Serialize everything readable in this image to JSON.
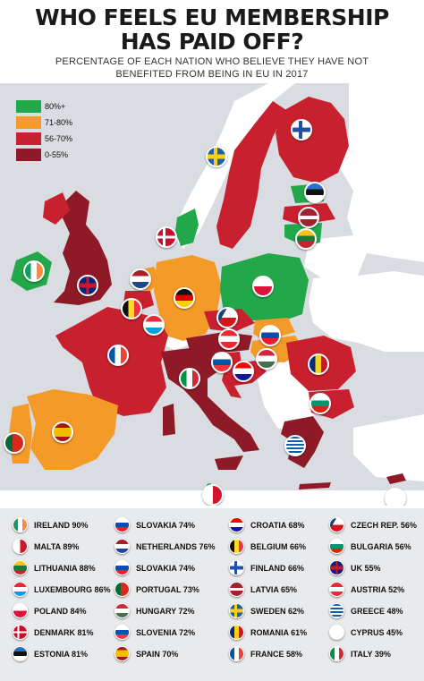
{
  "header": {
    "title_line1": "WHO FEELS EU MEMBERSHIP",
    "title_line2": "HAS PAID OFF?",
    "subtitle_line1": "PERCENTAGE OF EACH NATION WHO BELIEVE THEY HAVE NOT",
    "subtitle_line2": "BENEFITED FROM BEING IN EU IN 2017"
  },
  "colors": {
    "band_80_plus": "#22a84a",
    "band_71_80": "#f49a28",
    "band_56_70": "#c8202f",
    "band_0_55": "#8e1a27",
    "sea": "#d9dce0",
    "non_eu_land": "#ffffff"
  },
  "legend": [
    {
      "label": "80%+",
      "color": "#22a84a"
    },
    {
      "label": "71-80%",
      "color": "#f49a28"
    },
    {
      "label": "56-70%",
      "color": "#c8202f"
    },
    {
      "label": "0-55%",
      "color": "#8e1a27"
    }
  ],
  "countries": {
    "column1": [
      {
        "label": "IRELAND 90%",
        "flag": "ireland-flag-icon"
      },
      {
        "label": "MALTA 89%",
        "flag": "malta-flag-icon"
      },
      {
        "label": "LITHUANIA 88%",
        "flag": "lithuania-flag-icon"
      },
      {
        "label": "LUXEMBOURG 86%",
        "flag": "luxembourg-flag-icon"
      },
      {
        "label": "POLAND 84%",
        "flag": "poland-flag-icon"
      },
      {
        "label": "DENMARK 81%",
        "flag": "denmark-flag-icon"
      },
      {
        "label": "ESTONIA 81%",
        "flag": "estonia-flag-icon"
      }
    ],
    "column2": [
      {
        "label": "SLOVAKIA 74%",
        "flag": "slovakia-flag-icon"
      },
      {
        "label": "NETHERLANDS 76%",
        "flag": "netherlands-flag-icon"
      },
      {
        "label": "SLOVAKIA 74%",
        "flag": "slovakia-flag-icon"
      },
      {
        "label": "PORTUGAL 73%",
        "flag": "portugal-flag-icon"
      },
      {
        "label": "HUNGARY 72%",
        "flag": "hungary-flag-icon"
      },
      {
        "label": "SLOVENIA 72%",
        "flag": "slovenia-flag-icon"
      },
      {
        "label": "SPAIN 70%",
        "flag": "spain-flag-icon"
      }
    ],
    "column3": [
      {
        "label": "CROATIA 68%",
        "flag": "croatia-flag-icon"
      },
      {
        "label": "BELGIUM 66%",
        "flag": "belgium-flag-icon"
      },
      {
        "label": "FINLAND 66%",
        "flag": "finland-flag-icon"
      },
      {
        "label": "LATVIA 65%",
        "flag": "latvia-flag-icon"
      },
      {
        "label": "SWEDEN 62%",
        "flag": "sweden-flag-icon"
      },
      {
        "label": "ROMANIA 61%",
        "flag": "romania-flag-icon"
      },
      {
        "label": "FRANCE 58%",
        "flag": "france-flag-icon"
      }
    ],
    "column4": [
      {
        "label": "CZECH REP. 56%",
        "flag": "czech-flag-icon"
      },
      {
        "label": "BULGARIA 56%",
        "flag": "bulgaria-flag-icon"
      },
      {
        "label": "UK 55%",
        "flag": "uk-flag-icon"
      },
      {
        "label": "AUSTRIA 52%",
        "flag": "austria-flag-icon"
      },
      {
        "label": "GREECE 48%",
        "flag": "greece-flag-icon"
      },
      {
        "label": "CYPRUS 45%",
        "flag": "cyprus-flag-icon"
      },
      {
        "label": "ITALY 39%",
        "flag": "italy-flag-icon"
      }
    ]
  }
}
